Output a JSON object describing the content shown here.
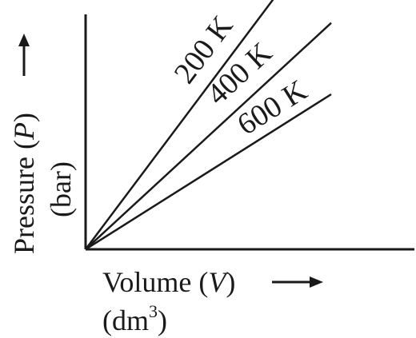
{
  "chart_data": {
    "type": "line",
    "title": "",
    "xlabel": {
      "main": "Volume (",
      "var": "V",
      "close": ")",
      "unit_open": "(dm",
      "unit_sup": "3",
      "unit_close": ")"
    },
    "ylabel": {
      "main": "Pressure (",
      "var": "P",
      "close": ")",
      "unit": "(bar)"
    },
    "x_ticks": [],
    "y_ticks": [],
    "grid": false,
    "series": [
      {
        "name": "200 K",
        "x": [
          0,
          1
        ],
        "y": [
          0,
          1.33
        ]
      },
      {
        "name": "400 K",
        "x": [
          0,
          1
        ],
        "y": [
          0,
          0.92
        ]
      },
      {
        "name": "600 K",
        "x": [
          0,
          1
        ],
        "y": [
          0,
          0.63
        ]
      }
    ],
    "line_color": "#1a1a1a"
  }
}
